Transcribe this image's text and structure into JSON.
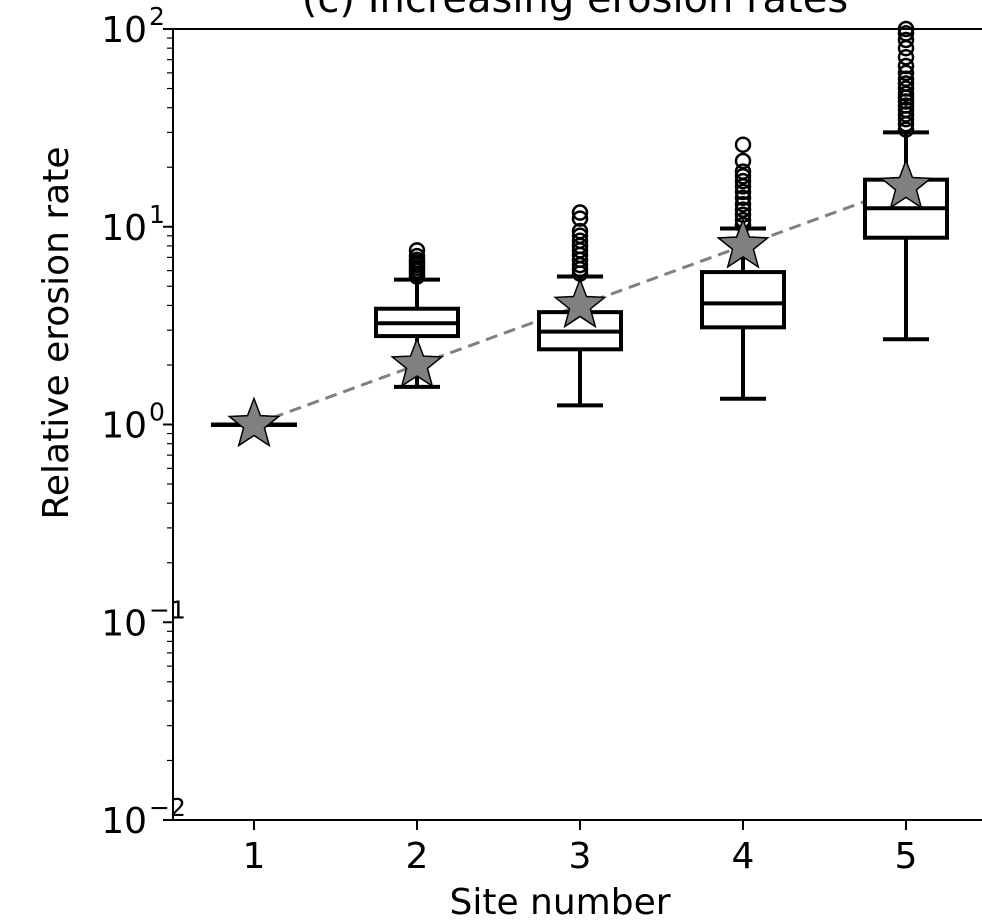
{
  "chart_data": {
    "type": "box",
    "title": "(c) Increasing erosion rates",
    "xlabel": "Site number",
    "ylabel": "Relative erosion rate",
    "yscale": "log",
    "ylim": [
      0.01,
      100
    ],
    "xlim": [
      0.5,
      5.5
    ],
    "x_ticks": [
      "1",
      "2",
      "3",
      "4",
      "5"
    ],
    "y_ticks": [
      {
        "value": 0.01,
        "base": "10",
        "exp": "−2"
      },
      {
        "value": 0.1,
        "base": "10",
        "exp": "−1"
      },
      {
        "value": 1,
        "base": "10",
        "exp": "0"
      },
      {
        "value": 10,
        "base": "10",
        "exp": "1"
      },
      {
        "value": 100,
        "base": "10",
        "exp": "2"
      }
    ],
    "boxes": [
      {
        "site": 1,
        "whisker_low": 1.0,
        "q1": 1.0,
        "median": 1.0,
        "q3": 1.0,
        "whisker_high": 1.0,
        "outliers": []
      },
      {
        "site": 2,
        "whisker_low": 1.55,
        "q1": 2.8,
        "median": 3.25,
        "q3": 3.85,
        "whisker_high": 5.4,
        "outliers": [
          5.6,
          5.8,
          6.0,
          6.2,
          6.4,
          6.6,
          6.8,
          7.1,
          7.6
        ]
      },
      {
        "site": 3,
        "whisker_low": 1.25,
        "q1": 2.4,
        "median": 2.95,
        "q3": 3.7,
        "whisker_high": 5.6,
        "outliers": [
          5.8,
          6.1,
          6.4,
          6.8,
          7.2,
          7.6,
          8.0,
          8.5,
          9.0,
          9.5,
          11.0,
          11.8
        ]
      },
      {
        "site": 4,
        "whisker_low": 1.35,
        "q1": 3.1,
        "median": 4.1,
        "q3": 5.9,
        "whisker_high": 9.8,
        "outliers": [
          10.2,
          10.8,
          11.5,
          12.2,
          13.0,
          14.0,
          15.0,
          16.0,
          17.0,
          18.0,
          19.0,
          21.5,
          26.0
        ]
      },
      {
        "site": 5,
        "whisker_low": 2.7,
        "q1": 8.8,
        "median": 12.4,
        "q3": 17.3,
        "whisker_high": 30.0,
        "outliers": [
          31,
          33,
          35,
          37,
          39,
          41,
          43,
          45,
          47,
          50,
          53,
          56,
          60,
          65,
          72,
          80,
          88,
          95,
          100
        ]
      }
    ],
    "star_series": {
      "marker": "star",
      "color": "#808080",
      "linestyle": "dashed",
      "x": [
        1,
        2,
        3,
        4,
        5
      ],
      "y": [
        1.0,
        2.0,
        4.0,
        8.0,
        16.0
      ]
    },
    "colors": {
      "box": "#000000",
      "star_fill": "#808080",
      "trend_line": "#808080"
    }
  }
}
